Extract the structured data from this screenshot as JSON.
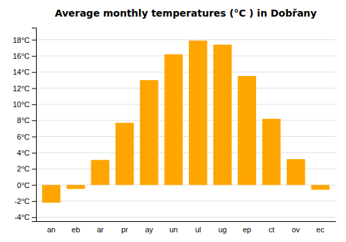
{
  "chart_data": {
    "type": "bar",
    "title": "Average monthly temperatures (°C ) in Dobřany",
    "categories": [
      "an",
      "eb",
      "ar",
      "pr",
      "ay",
      "un",
      "ul",
      "ug",
      "ep",
      "ct",
      "ov",
      "ec"
    ],
    "values": [
      -2.2,
      -0.5,
      3.1,
      7.7,
      13.0,
      16.2,
      17.9,
      17.4,
      13.5,
      8.2,
      3.2,
      -0.6
    ],
    "color": "#FFA500",
    "ylim": [
      -4.5,
      19.5
    ],
    "yticks": [
      {
        "value": -4,
        "label": "-4°C"
      },
      {
        "value": -2,
        "label": "-2°C"
      },
      {
        "value": 0,
        "label": "0°C"
      },
      {
        "value": 2,
        "label": "2°C"
      },
      {
        "value": 4,
        "label": "4°C"
      },
      {
        "value": 6,
        "label": "6°C"
      },
      {
        "value": 8,
        "label": "8°C"
      },
      {
        "value": 10,
        "label": "10°C"
      },
      {
        "value": 12,
        "label": "12°C"
      },
      {
        "value": 14,
        "label": "14°C"
      },
      {
        "value": 16,
        "label": "16°C"
      },
      {
        "value": 18,
        "label": "18°C"
      }
    ],
    "grid": true
  }
}
